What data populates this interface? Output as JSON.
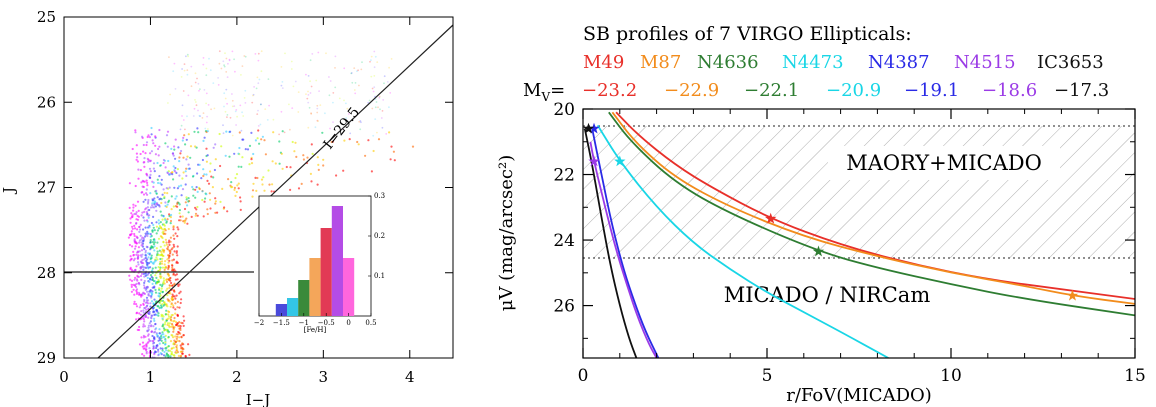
{
  "chart_data": [
    {
      "type": "scatter",
      "xlabel": "I−J",
      "ylabel": "J",
      "xlim": [
        0,
        4.5
      ],
      "ylim": [
        29,
        25
      ],
      "xticks": [
        "0",
        "1",
        "2",
        "3",
        "4"
      ],
      "yticks": [
        "25",
        "26",
        "27",
        "28",
        "29"
      ],
      "limit_line_label": "I=29.5",
      "horizontal_line_J": 28.0,
      "colors": [
        "#ff00ff",
        "#cc33ff",
        "#9966ff",
        "#3333ff",
        "#33ccff",
        "#00cc66",
        "#ccff00",
        "#ffcc00",
        "#ff6600",
        "#ff0000"
      ],
      "inset": {
        "type": "bar",
        "xlabel": "[Fe/H]",
        "xticks": [
          "−2",
          "−1.5",
          "−1",
          "−0.5",
          "0",
          "0.5"
        ],
        "yticks": [
          "0.1",
          "0.2",
          "0.3"
        ],
        "ylim": [
          0,
          0.3
        ],
        "bars": [
          {
            "x": -1.5,
            "value": 0.03,
            "color": "#4a4adb"
          },
          {
            "x": -1.25,
            "value": 0.045,
            "color": "#33c6e6"
          },
          {
            "x": -1.0,
            "value": 0.09,
            "color": "#3a8a3a"
          },
          {
            "x": -0.75,
            "value": 0.145,
            "color": "#f4a65a"
          },
          {
            "x": -0.5,
            "value": 0.22,
            "color": "#e23a55"
          },
          {
            "x": -0.25,
            "value": 0.275,
            "color": "#b44ce6"
          },
          {
            "x": 0.0,
            "value": 0.145,
            "color": "#ff66dd"
          }
        ]
      }
    },
    {
      "type": "line",
      "title": "SB profiles of 7 VIRGO Ellipticals:",
      "xlabel": "r/FoV(MICADO)",
      "ylabel": "μV (mag/arcsec²)",
      "xlim": [
        0,
        15
      ],
      "ylim": [
        27.6,
        20
      ],
      "xticks": [
        "0",
        "5",
        "10",
        "15"
      ],
      "yticks": [
        "20",
        "22",
        "24",
        "26"
      ],
      "mv_prefix": "M",
      "mv_sub": "V",
      "mv_suffix": "=",
      "series": [
        {
          "name": "M49",
          "mv": "−23.2",
          "color": "#e8302a",
          "points": [
            [
              0.9,
              20.1
            ],
            [
              1.5,
              20.8
            ],
            [
              2.5,
              21.7
            ],
            [
              3.5,
              22.4
            ],
            [
              5.1,
              23.35
            ],
            [
              7,
              24.15
            ],
            [
              9,
              24.75
            ],
            [
              11,
              25.2
            ],
            [
              13,
              25.5
            ],
            [
              15,
              25.8
            ]
          ],
          "star": [
            5.1,
            23.35
          ]
        },
        {
          "name": "M87",
          "mv": "−22.9",
          "color": "#f28c1c",
          "points": [
            [
              0.8,
              20.1
            ],
            [
              1.4,
              21.0
            ],
            [
              2.5,
              22.1
            ],
            [
              4,
              23.0
            ],
            [
              6,
              23.9
            ],
            [
              8,
              24.5
            ],
            [
              10,
              25.0
            ],
            [
              12,
              25.4
            ],
            [
              13.3,
              25.7
            ],
            [
              15,
              25.95
            ]
          ],
          "star": [
            13.3,
            25.7
          ]
        },
        {
          "name": "N4636",
          "mv": "−22.1",
          "color": "#2e7d32",
          "points": [
            [
              0.7,
              20.1
            ],
            [
              1.3,
              21.0
            ],
            [
              2.5,
              22.25
            ],
            [
              4,
              23.2
            ],
            [
              6.4,
              24.35
            ],
            [
              8,
              24.85
            ],
            [
              10,
              25.35
            ],
            [
              12,
              25.8
            ],
            [
              15,
              26.3
            ]
          ],
          "star": [
            6.4,
            24.35
          ]
        },
        {
          "name": "N4473",
          "mv": "−20.9",
          "color": "#19d6e6",
          "points": [
            [
              0.4,
              20.5
            ],
            [
              1.0,
              21.6
            ],
            [
              2,
              23.0
            ],
            [
              3,
              24.1
            ],
            [
              4,
              24.9
            ],
            [
              5,
              25.6
            ],
            [
              6,
              26.2
            ],
            [
              7,
              26.8
            ],
            [
              8.3,
              27.6
            ]
          ],
          "star": [
            1.0,
            21.6
          ]
        },
        {
          "name": "N4387",
          "mv": "−19.1",
          "color": "#2a2ae6",
          "points": [
            [
              0.25,
              20.6
            ],
            [
              0.5,
              22.0
            ],
            [
              0.8,
              23.6
            ],
            [
              1.1,
              24.9
            ],
            [
              1.4,
              25.9
            ],
            [
              1.7,
              26.8
            ],
            [
              2.05,
              27.6
            ]
          ],
          "star": [
            0.3,
            20.6
          ]
        },
        {
          "name": "N4515",
          "mv": "−18.6",
          "color": "#9b3be6",
          "points": [
            [
              0.2,
              21.0
            ],
            [
              0.3,
              21.6
            ],
            [
              0.6,
              23.0
            ],
            [
              0.9,
              24.3
            ],
            [
              1.2,
              25.4
            ],
            [
              1.5,
              26.4
            ],
            [
              1.8,
              27.2
            ],
            [
              2.0,
              27.6
            ]
          ],
          "star": [
            0.3,
            21.6
          ]
        },
        {
          "name": "IC3653",
          "mv": "−17.3",
          "color": "#111111",
          "points": [
            [
              0.05,
              20.6
            ],
            [
              0.25,
              21.7
            ],
            [
              0.5,
              23.3
            ],
            [
              0.75,
              24.8
            ],
            [
              1.0,
              26.0
            ],
            [
              1.25,
              27.0
            ],
            [
              1.45,
              27.6
            ]
          ],
          "star": [
            0.15,
            20.6
          ]
        }
      ],
      "regions": [
        {
          "label": "MAORY+MICADO",
          "from": 20.5,
          "to": 25.0
        },
        {
          "label": "MICADO / NIRCam"
        }
      ]
    }
  ]
}
